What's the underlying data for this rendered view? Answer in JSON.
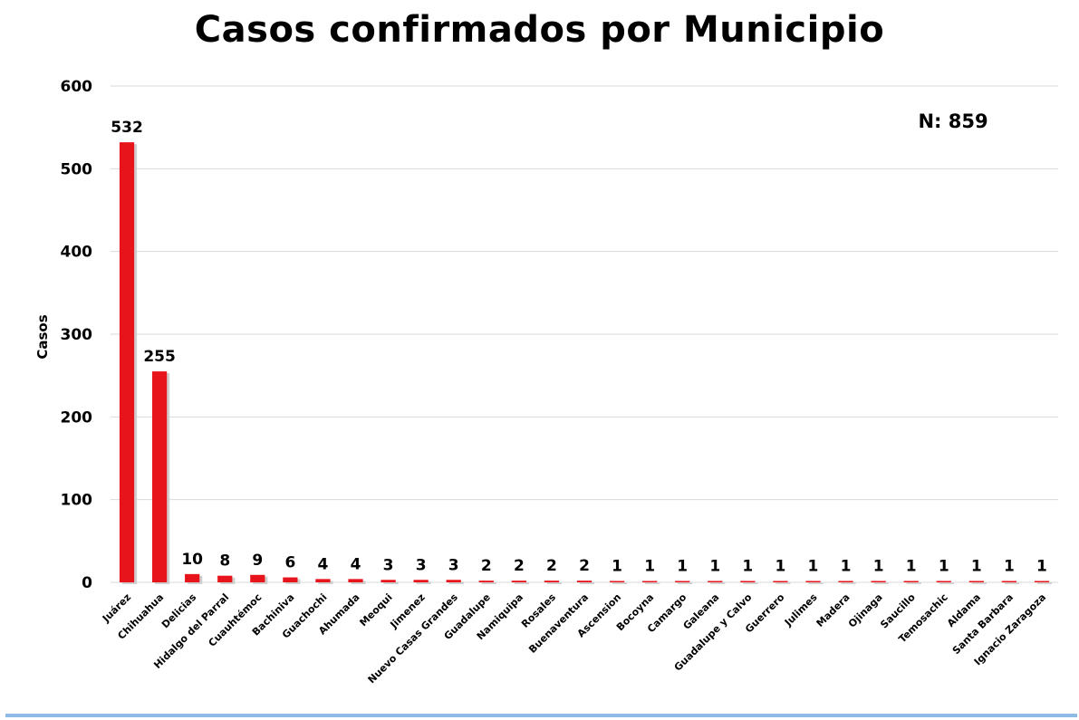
{
  "chart_data": {
    "type": "bar",
    "title": "Casos confirmados por Municipio",
    "xlabel": "",
    "ylabel": "Casos",
    "ylim": [
      0,
      600
    ],
    "yticks": [
      0,
      100,
      200,
      300,
      400,
      500,
      600
    ],
    "grid": true,
    "annotation": "N: 859",
    "bar_color": "#e8141c",
    "categories": [
      "Juárez",
      "Chihuahua",
      "Delicias",
      "Hidalgo del Parral",
      "Cuauhtémoc",
      "Bachiniva",
      "Guachochi",
      "Ahumada",
      "Meoqui",
      "Jimenez",
      "Nuevo Casas Grandes",
      "Guadalupe",
      "Namiquipa",
      "Rosales",
      "Buenaventura",
      "Ascension",
      "Bocoyna",
      "Camargo",
      "Galeana",
      "Guadalupe y Calvo",
      "Guerrero",
      "Julimes",
      "Madera",
      "Ojinaga",
      "Saucillo",
      "Temosachic",
      "Aldama",
      "Santa Barbara",
      "Ignacio Zaragoza"
    ],
    "values": [
      532,
      255,
      10,
      8,
      9,
      6,
      4,
      4,
      3,
      3,
      3,
      2,
      2,
      2,
      2,
      1,
      1,
      1,
      1,
      1,
      1,
      1,
      1,
      1,
      1,
      1,
      1,
      1,
      1
    ]
  }
}
